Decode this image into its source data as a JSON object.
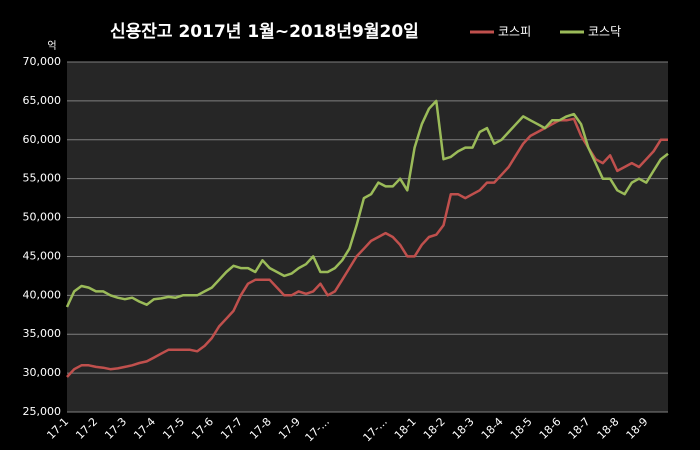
{
  "chart_data": {
    "type": "line",
    "title": "신용잔고 2017년 1월~2018년9월20일",
    "y_unit": "억",
    "categories": [
      "17-1",
      null,
      null,
      null,
      "17-2",
      null,
      null,
      null,
      "17-3",
      null,
      null,
      null,
      "17-4",
      null,
      null,
      null,
      "17-5",
      null,
      null,
      null,
      "17-6",
      null,
      null,
      null,
      "17-7",
      null,
      null,
      null,
      "17-8",
      null,
      null,
      null,
      "17-9",
      null,
      null,
      null,
      "17-...",
      null,
      null,
      null,
      null,
      null,
      null,
      null,
      "17-...",
      null,
      null,
      null,
      "18-1",
      null,
      null,
      null,
      "18-2",
      null,
      null,
      null,
      "18-3",
      null,
      null,
      null,
      "18-4",
      null,
      null,
      null,
      "18-5",
      null,
      null,
      null,
      "18-6",
      null,
      null,
      null,
      "18-7",
      null,
      null,
      null,
      "18-8",
      null,
      null,
      null,
      "18-9",
      null,
      null,
      null
    ],
    "series": [
      {
        "name": "코스피",
        "color": "#c0504d",
        "values": [
          29500,
          30500,
          31000,
          31000,
          30800,
          30700,
          30500,
          30600,
          30800,
          31000,
          31300,
          31500,
          32000,
          32500,
          33000,
          33000,
          33000,
          33000,
          32800,
          33500,
          34500,
          36000,
          37000,
          38000,
          40000,
          41500,
          42000,
          42000,
          42000,
          41000,
          40000,
          40000,
          40500,
          40200,
          40500,
          41500,
          40000,
          40500,
          42000,
          43500,
          45000,
          46000,
          47000,
          47500,
          48000,
          47500,
          46500,
          45000,
          45000,
          46500,
          47500,
          47800,
          49000,
          53000,
          53000,
          52500,
          53000,
          53500,
          54500,
          54500,
          55500,
          56500,
          58000,
          59500,
          60500,
          61000,
          61500,
          62000,
          62500,
          62500,
          62700,
          60500,
          59000,
          57500,
          57000,
          58000,
          56000,
          56500,
          57000,
          56500,
          57500,
          58500,
          60000,
          60000
        ]
      },
      {
        "name": "코스닥",
        "color": "#9bbb59",
        "values": [
          38500,
          40500,
          41200,
          41000,
          40500,
          40500,
          40000,
          39700,
          39500,
          39700,
          39200,
          38800,
          39500,
          39600,
          39800,
          39700,
          40000,
          40000,
          40000,
          40500,
          41000,
          42000,
          43000,
          43800,
          43500,
          43500,
          43000,
          44500,
          43500,
          43000,
          42500,
          42800,
          43500,
          44000,
          45000,
          43000,
          43000,
          43500,
          44500,
          46000,
          49000,
          52500,
          53000,
          54500,
          54000,
          54000,
          55000,
          53500,
          59000,
          62000,
          64000,
          65000,
          57500,
          57800,
          58500,
          59000,
          59000,
          61000,
          61500,
          59500,
          60000,
          61000,
          62000,
          63000,
          62500,
          62000,
          61500,
          62500,
          62500,
          63000,
          63300,
          62000,
          59000,
          57000,
          55000,
          55000,
          53500,
          53000,
          54500,
          55000,
          54500,
          56000,
          57500,
          58200
        ]
      }
    ],
    "ylim": [
      25000,
      70000
    ],
    "yticks": [
      {
        "value": 25000,
        "label": "25,000"
      },
      {
        "value": 30000,
        "label": "30,000"
      },
      {
        "value": 35000,
        "label": "35,000"
      },
      {
        "value": 40000,
        "label": "40,000"
      },
      {
        "value": 45000,
        "label": "45,000"
      },
      {
        "value": 50000,
        "label": "50,000"
      },
      {
        "value": 55000,
        "label": "55,000"
      },
      {
        "value": 60000,
        "label": "60,000"
      },
      {
        "value": 65000,
        "label": "65,000"
      },
      {
        "value": 70000,
        "label": "70,000"
      }
    ],
    "grid": true,
    "legend": "top-right"
  }
}
